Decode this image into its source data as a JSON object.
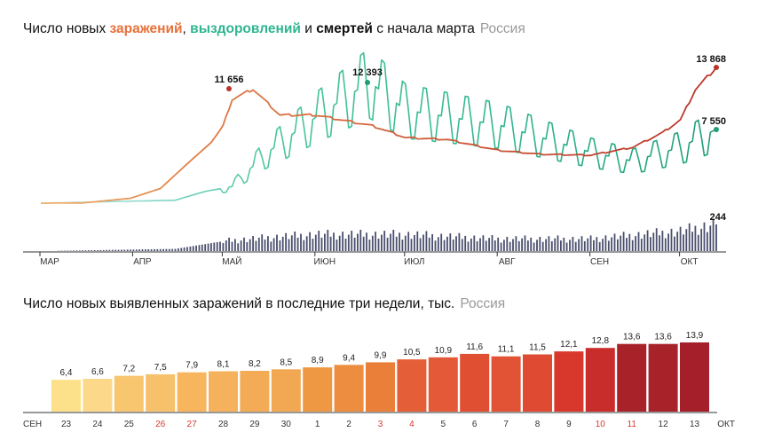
{
  "chart1": {
    "title_parts": [
      "Число новых ",
      "заражений",
      ", ",
      "выздоровлений",
      " и ",
      "смертей",
      " с начала марта"
    ],
    "region": "Россия",
    "annotations": {
      "cases_peak": "11 656",
      "recovered_peak": "12 393",
      "cases_last": "13 868",
      "recovered_last": "7 550",
      "deaths_last": "244"
    },
    "months": [
      "МАР",
      "АПР",
      "МАЙ",
      "ИЮН",
      "ИЮЛ",
      "АВГ",
      "СЕН",
      "ОКТ"
    ],
    "colors": {
      "cases_early": "#f0b36e",
      "cases_late": "#b9342b",
      "recovered_early": "#bfe7ef",
      "recovered_late": "#1f9e78",
      "deaths": "#4a4e6d"
    }
  },
  "chart2": {
    "title": "Число новых выявленных заражений в последние три недели, тыс.",
    "region": "Россия",
    "month_start": "СЕН",
    "month_end": "ОКТ"
  },
  "chart_data": [
    {
      "type": "line",
      "title": "Число новых заражений, выздоровлений и смертей с начала марта",
      "x_range": [
        "2020-03-01",
        "2020-10-13"
      ],
      "series": [
        {
          "name": "заражений",
          "points": [
            [
              "2020-03-01",
              0
            ],
            [
              "2020-03-15",
              20
            ],
            [
              "2020-03-31",
              500
            ],
            [
              "2020-04-10",
              1500
            ],
            [
              "2020-04-20",
              4300
            ],
            [
              "2020-04-27",
              6200
            ],
            [
              "2020-05-01",
              7900
            ],
            [
              "2020-05-04",
              10600
            ],
            [
              "2020-05-11",
              11656
            ],
            [
              "2020-05-20",
              9000
            ],
            [
              "2020-06-01",
              9000
            ],
            [
              "2020-06-20",
              7900
            ],
            [
              "2020-07-01",
              6700
            ],
            [
              "2020-07-15",
              6500
            ],
            [
              "2020-08-01",
              5400
            ],
            [
              "2020-08-15",
              5000
            ],
            [
              "2020-09-01",
              4900
            ],
            [
              "2020-09-15",
              5700
            ],
            [
              "2020-09-25",
              7200
            ],
            [
              "2020-10-01",
              8500
            ],
            [
              "2020-10-06",
              11600
            ],
            [
              "2020-10-13",
              13868
            ]
          ]
        },
        {
          "name": "выздоровлений",
          "points": [
            [
              "2020-03-01",
              0
            ],
            [
              "2020-04-15",
              300
            ],
            [
              "2020-04-25",
              1200
            ],
            [
              "2020-05-04",
              1700
            ],
            [
              "2020-05-15",
              5000
            ],
            [
              "2020-06-02",
              9000
            ],
            [
              "2020-06-19",
              12393
            ],
            [
              "2020-07-01",
              9500
            ],
            [
              "2020-08-01",
              8000
            ],
            [
              "2020-09-01",
              5200
            ],
            [
              "2020-09-15",
              4300
            ],
            [
              "2020-10-01",
              5700
            ],
            [
              "2020-10-13",
              7550
            ]
          ]
        },
        {
          "name": "смертей",
          "points": [
            [
              "2020-03-01",
              0
            ],
            [
              "2020-04-15",
              20
            ],
            [
              "2020-05-01",
              90
            ],
            [
              "2020-05-15",
              120
            ],
            [
              "2020-06-01",
              150
            ],
            [
              "2020-07-01",
              150
            ],
            [
              "2020-08-01",
              110
            ],
            [
              "2020-09-01",
              110
            ],
            [
              "2020-10-01",
              180
            ],
            [
              "2020-10-13",
              244
            ]
          ]
        }
      ]
    },
    {
      "type": "bar",
      "title": "Число новых выявленных заражений в последние три недели, тыс.",
      "categories": [
        "23",
        "24",
        "25",
        "26",
        "27",
        "28",
        "29",
        "30",
        "1",
        "2",
        "3",
        "4",
        "5",
        "6",
        "7",
        "8",
        "9",
        "10",
        "11",
        "12",
        "13"
      ],
      "values": [
        6.4,
        6.6,
        7.2,
        7.5,
        7.9,
        8.1,
        8.2,
        8.5,
        8.9,
        9.4,
        9.9,
        10.5,
        10.9,
        11.6,
        11.1,
        11.5,
        12.1,
        12.8,
        13.6,
        13.6,
        13.9
      ],
      "value_labels": [
        "6,4",
        "6,6",
        "7,2",
        "7,5",
        "7,9",
        "8,1",
        "8,2",
        "8,5",
        "8,9",
        "9,4",
        "9,9",
        "10,5",
        "10,9",
        "11,6",
        "11,1",
        "11,5",
        "12,1",
        "12,8",
        "13,6",
        "13,6",
        "13,9"
      ],
      "weekend_categories": [
        "26",
        "27",
        "3",
        "4",
        "10",
        "11"
      ],
      "colors": [
        "#fde08a",
        "#fcd98a",
        "#f7c66f",
        "#f6c16a",
        "#f7b65d",
        "#f5b15b",
        "#f3ab55",
        "#f2a853",
        "#ef9844",
        "#ec8d3f",
        "#ea7f3a",
        "#e45f37",
        "#e45937",
        "#e14f33",
        "#e15334",
        "#df4a32",
        "#d8382b",
        "#c92d2b",
        "#a8222a",
        "#a8222a",
        "#a41f29"
      ],
      "ylim": [
        0,
        15
      ]
    }
  ]
}
